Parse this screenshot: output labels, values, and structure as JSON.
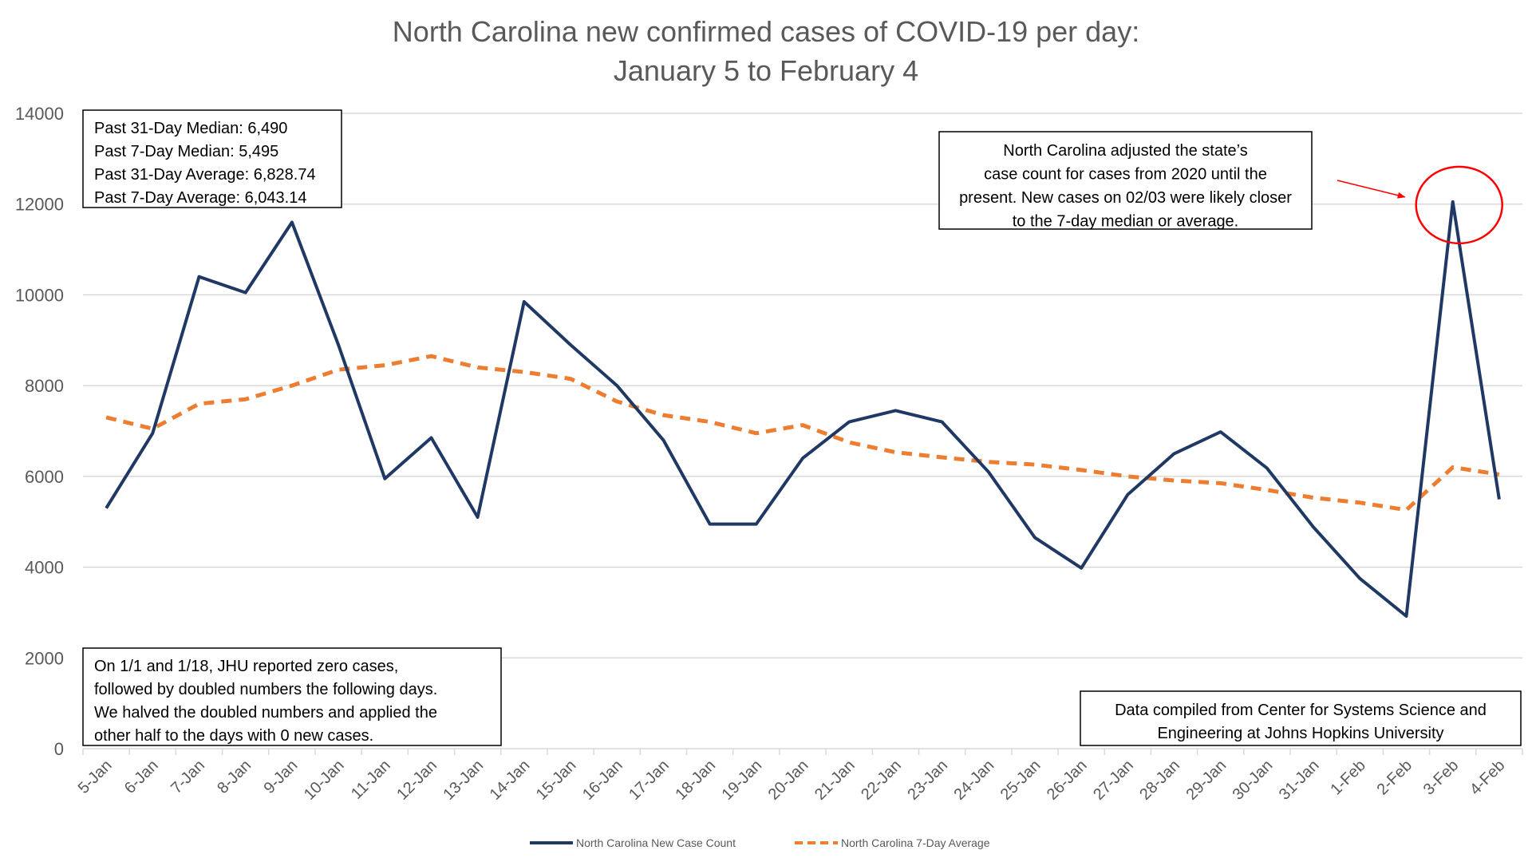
{
  "chart_data": {
    "type": "line",
    "title": "North Carolina new confirmed cases of COVID-19 per day:",
    "subtitle": "January 5 to February 4",
    "xlabel": "",
    "ylabel": "",
    "ylim": [
      0,
      14000
    ],
    "yticks": [
      "0",
      "2000",
      "4000",
      "6000",
      "8000",
      "10000",
      "12000",
      "14000"
    ],
    "categories": [
      "5-Jan",
      "6-Jan",
      "7-Jan",
      "8-Jan",
      "9-Jan",
      "10-Jan",
      "11-Jan",
      "12-Jan",
      "13-Jan",
      "14-Jan",
      "15-Jan",
      "16-Jan",
      "17-Jan",
      "18-Jan",
      "19-Jan",
      "20-Jan",
      "21-Jan",
      "22-Jan",
      "23-Jan",
      "24-Jan",
      "25-Jan",
      "26-Jan",
      "27-Jan",
      "28-Jan",
      "29-Jan",
      "30-Jan",
      "31-Jan",
      "1-Feb",
      "2-Feb",
      "3-Feb",
      "4-Feb"
    ],
    "series": [
      {
        "name": "North Carolina New Case Count",
        "color": "#1f3864",
        "style": "solid",
        "values": [
          5300,
          6950,
          10400,
          10050,
          11600,
          8900,
          5950,
          6850,
          5100,
          9850,
          8900,
          8000,
          6800,
          4950,
          4950,
          6400,
          7200,
          7450,
          7200,
          6100,
          4650,
          3980,
          5600,
          6500,
          6980,
          6180,
          4880,
          3750,
          2920,
          12050,
          5495
        ]
      },
      {
        "name": "North Carolina 7-Day Average",
        "color": "#ed7d31",
        "style": "dashed",
        "values": [
          7300,
          7050,
          7600,
          7700,
          8000,
          8350,
          8450,
          8650,
          8400,
          8300,
          8150,
          7650,
          7350,
          7200,
          6950,
          7130,
          6750,
          6530,
          6420,
          6320,
          6260,
          6140,
          6000,
          5910,
          5850,
          5700,
          5530,
          5420,
          5260,
          6200,
          6043
        ]
      }
    ],
    "grid": "horizontal",
    "legend_position": "bottom-center",
    "annotations": {
      "stats_box": [
        "Past 31-Day Median: 6,490",
        "Past 7-Day Median: 5,495",
        "Past 31-Day Average: 6,828.74",
        "Past 7-Day Average: 6,043.14"
      ],
      "adjustment_note": [
        "North Carolina adjusted the state’s",
        "case count for cases from 2020 until the",
        "present. New cases on 02/03 were likely closer",
        "to the 7-day median or average."
      ],
      "jhu_note": [
        "On 1/1 and 1/18, JHU reported zero cases,",
        "followed by doubled numbers the following days.",
        "We halved the doubled numbers and applied the",
        "other half to the days with 0 new cases."
      ],
      "source_note": [
        "Data compiled from Center for Systems Science and",
        "Engineering at Johns Hopkins University"
      ],
      "highlight": {
        "category": "3-Feb",
        "value": 12050,
        "color": "#ff0000"
      }
    }
  }
}
